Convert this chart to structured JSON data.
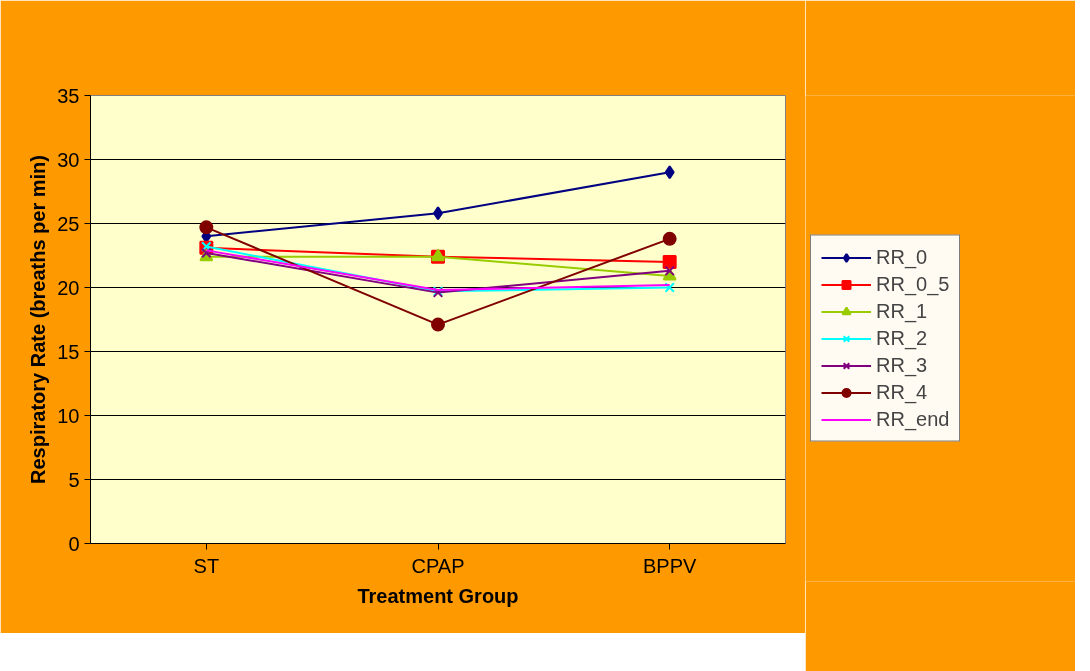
{
  "chart_data": {
    "type": "line",
    "xlabel": "Treatment Group",
    "ylabel": "Respiratory Rate (breaths per min)",
    "categories": [
      "ST",
      "CPAP",
      "BPPV"
    ],
    "series": [
      {
        "name": "RR_0",
        "color": "#000080",
        "marker": "diamond",
        "values": [
          24.0,
          25.8,
          29.0
        ]
      },
      {
        "name": "RR_0_5",
        "color": "#ff0000",
        "marker": "square",
        "values": [
          23.1,
          22.4,
          22.0
        ]
      },
      {
        "name": "RR_1",
        "color": "#99cc00",
        "marker": "triangle",
        "values": [
          22.4,
          22.4,
          20.9
        ]
      },
      {
        "name": "RR_2",
        "color": "#00ffff",
        "marker": "cross",
        "values": [
          23.2,
          19.7,
          20.0
        ]
      },
      {
        "name": "RR_3",
        "color": "#800080",
        "marker": "cross",
        "values": [
          22.7,
          19.6,
          21.3
        ]
      },
      {
        "name": "RR_4",
        "color": "#800000",
        "marker": "circle",
        "values": [
          24.7,
          17.1,
          23.8
        ]
      },
      {
        "name": "RR_end",
        "color": "#ff00ff",
        "marker": "none",
        "values": [
          22.9,
          19.8,
          20.2
        ]
      }
    ],
    "ylim": [
      0,
      35
    ],
    "yticks": [
      0,
      5,
      10,
      15,
      20,
      25,
      30,
      35
    ],
    "grid": "y",
    "legend": "right"
  }
}
